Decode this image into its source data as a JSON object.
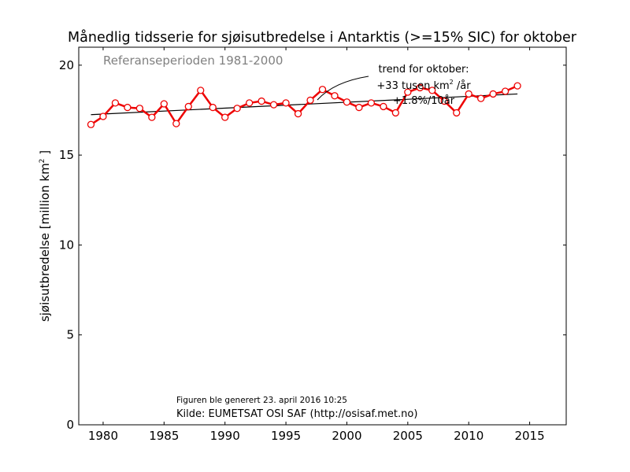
{
  "chart_data": {
    "type": "line",
    "title": "Månedlig tidsserie for sjøisutbredelse i Antarktis (>=15% SIC) for oktober",
    "subtitle": "Referanseperioden 1981-2000",
    "ylabel": "sjøisutbredelse [million km",
    "ylabel_sup": "2",
    "ylabel_end": " ]",
    "xlabel": "",
    "xlim": [
      1978,
      2018
    ],
    "ylim": [
      0,
      21
    ],
    "x_ticks": [
      1980,
      1985,
      1990,
      1995,
      2000,
      2005,
      2010,
      2015
    ],
    "y_ticks": [
      0,
      5,
      10,
      15,
      20
    ],
    "grid": false,
    "colors": {
      "series": "#ee0000",
      "trend": "#000000",
      "subtitle": "#808080"
    },
    "series": [
      {
        "x": [
          1979,
          1980,
          1981,
          1982,
          1983,
          1984,
          1985,
          1986,
          1987,
          1988,
          1989,
          1990,
          1991,
          1992,
          1993,
          1994,
          1995,
          1996,
          1997,
          1998,
          1999,
          2000,
          2001,
          2002,
          2003,
          2004,
          2005,
          2006,
          2007,
          2008,
          2009,
          2010,
          2011,
          2012,
          2013,
          2014
        ],
        "values": [
          16.7,
          17.15,
          17.9,
          17.65,
          17.6,
          17.1,
          17.85,
          16.75,
          17.7,
          18.6,
          17.65,
          17.1,
          17.6,
          17.9,
          18.0,
          17.8,
          17.9,
          17.3,
          18.05,
          18.65,
          18.3,
          17.95,
          17.65,
          17.9,
          17.7,
          17.35,
          18.5,
          18.75,
          18.6,
          18.0,
          17.35,
          18.4,
          18.15,
          18.4,
          18.55,
          18.85
        ]
      }
    ],
    "trend": {
      "x": [
        1979,
        2014
      ],
      "values": [
        17.25,
        18.4
      ]
    },
    "annotation": {
      "line1": "trend for oktober:",
      "line2a": "+33 tusen km",
      "line2sup": "2",
      "line2b": " /år",
      "line3": "+1.8%/10år"
    },
    "footer": {
      "generated": "Figuren ble generert 23. april 2016 10:25",
      "source": "Kilde: EUMETSAT OSI SAF (http://osisaf.met.no)"
    }
  }
}
